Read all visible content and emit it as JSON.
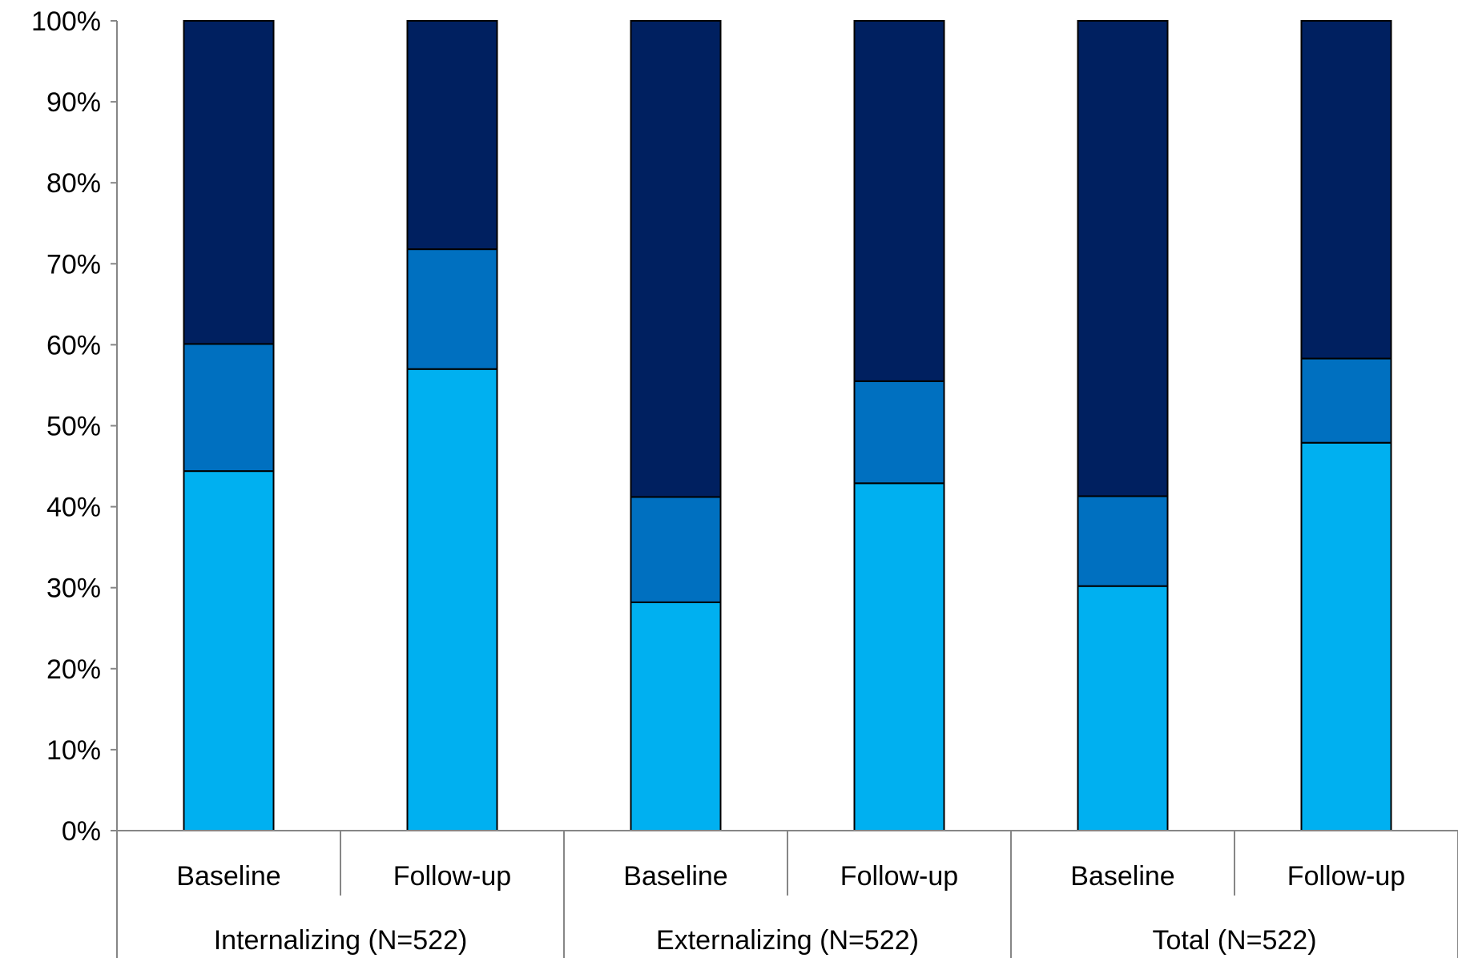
{
  "chart_data": {
    "type": "bar",
    "stacked": true,
    "percent_stacked": true,
    "title": "",
    "xlabel": "",
    "ylabel": "",
    "ylim": [
      0,
      100
    ],
    "y_ticks": [
      "0%",
      "10%",
      "20%",
      "30%",
      "40%",
      "50%",
      "60%",
      "70%",
      "80%",
      "90%",
      "100%"
    ],
    "grid": false,
    "legend": "none",
    "groups": [
      {
        "label": "Internalizing (N=522)",
        "categories": [
          "Baseline",
          "Follow-up"
        ]
      },
      {
        "label": "Externalizing (N=522)",
        "categories": [
          "Baseline",
          "Follow-up"
        ]
      },
      {
        "label": "Total (N=522)",
        "categories": [
          "Baseline",
          "Follow-up"
        ]
      }
    ],
    "categories": [
      "Baseline",
      "Follow-up",
      "Baseline",
      "Follow-up",
      "Baseline",
      "Follow-up"
    ],
    "series": [
      {
        "color": "#00B0F0",
        "values": [
          44.4,
          57.0,
          28.2,
          42.9,
          30.2,
          47.9
        ]
      },
      {
        "color": "#0070C0",
        "values": [
          15.7,
          14.8,
          13.0,
          12.6,
          11.1,
          10.4
        ]
      },
      {
        "color": "#002060",
        "values": [
          39.9,
          28.2,
          58.8,
          44.5,
          58.7,
          41.7
        ]
      }
    ]
  }
}
